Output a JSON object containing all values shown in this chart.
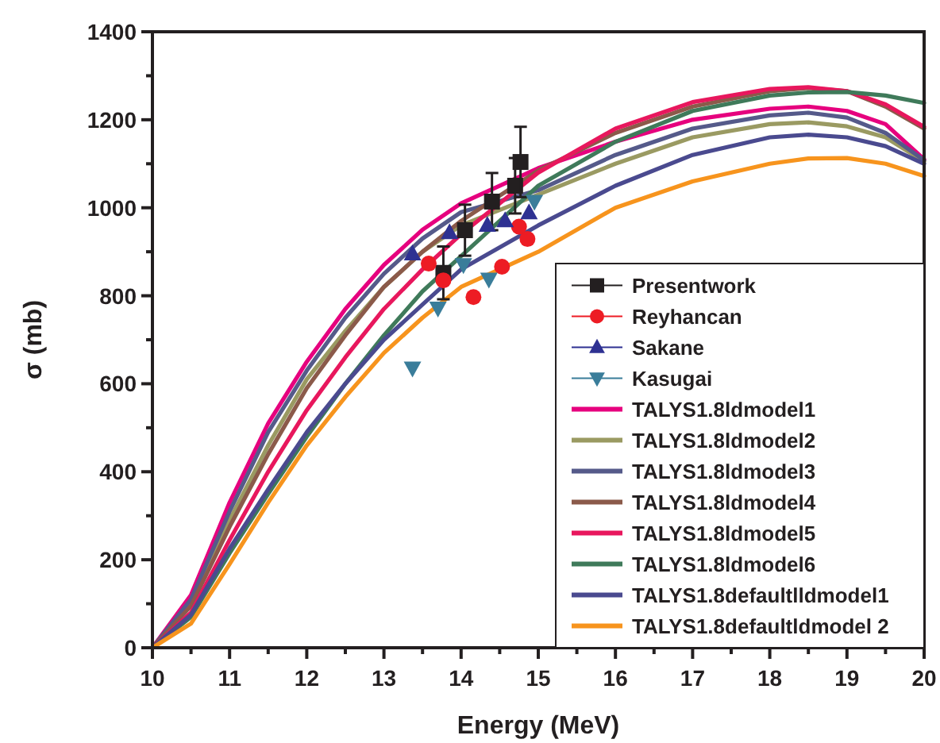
{
  "chart_data": {
    "type": "line",
    "xlabel": "Energy (MeV)",
    "ylabel": "σ (mb)",
    "xlim": [
      10,
      20
    ],
    "ylim": [
      0,
      1400
    ],
    "xticks": [
      10,
      {
        "value": 10.5,
        "label": null
      },
      11,
      {
        "value": 11.5,
        "label": null
      },
      12,
      {
        "value": 12.5,
        "label": null
      },
      13,
      {
        "value": 13.5,
        "label": null
      },
      14,
      {
        "value": 14.5,
        "label": null
      },
      15,
      {
        "value": 15.5,
        "label": null
      },
      16,
      {
        "value": 16.5,
        "label": null
      },
      17,
      {
        "value": 17.5,
        "label": null
      },
      18,
      {
        "value": 18.5,
        "label": null
      },
      19,
      {
        "value": 19.5,
        "label": null
      },
      20
    ],
    "yticks": [
      0,
      {
        "value": 100,
        "label": null
      },
      200,
      {
        "value": 300,
        "label": null
      },
      400,
      {
        "value": 500,
        "label": null
      },
      600,
      {
        "value": 700,
        "label": null
      },
      800,
      {
        "value": 900,
        "label": null
      },
      1000,
      {
        "value": 1100,
        "label": null
      },
      1200,
      {
        "value": 1300,
        "label": null
      },
      1400
    ],
    "grid": false,
    "legend": "bottom right",
    "series": [
      {
        "name": "Presentwork",
        "type": "scatter",
        "marker": "square",
        "color": "#231f20",
        "x": [
          13.77,
          14.05,
          14.4,
          14.7,
          14.77
        ],
        "values": [
          852,
          949,
          1014,
          1050,
          1104
        ],
        "errors": [
          60,
          58,
          65,
          63,
          80
        ]
      },
      {
        "name": "Reyhancan",
        "type": "scatter",
        "marker": "circle",
        "color": "#ed1c24",
        "x": [
          13.58,
          13.77,
          14.16,
          14.53,
          14.75,
          14.86
        ],
        "values": [
          873,
          835,
          797,
          866,
          957,
          929
        ]
      },
      {
        "name": "Sakane",
        "type": "scatter",
        "marker": "triangle",
        "color": "#2e3192",
        "x": [
          13.37,
          13.85,
          14.34,
          14.57,
          14.88
        ],
        "values": [
          895,
          943,
          960,
          970,
          988
        ]
      },
      {
        "name": "Kasugai",
        "type": "scatter",
        "marker": "triangle-down",
        "color": "#3a7d9a",
        "x": [
          13.37,
          13.7,
          14.03,
          14.36,
          14.95
        ],
        "values": [
          636,
          772,
          871,
          838,
          1015
        ]
      },
      {
        "name": "TALYS1.8ldmodel1",
        "color": "#e6007e",
        "x": [
          10,
          10.5,
          11,
          11.5,
          12,
          12.5,
          13,
          13.5,
          14,
          15,
          16,
          17,
          18,
          18.5,
          19,
          19.5,
          20
        ],
        "values": [
          0,
          120,
          330,
          510,
          650,
          770,
          870,
          950,
          1010,
          1090,
          1150,
          1200,
          1225,
          1230,
          1220,
          1190,
          1110
        ]
      },
      {
        "name": "TALYS1.8ldmodel2",
        "color": "#9a9a62",
        "x": [
          10,
          10.5,
          11,
          11.5,
          12,
          12.5,
          13,
          13.5,
          14,
          15,
          16,
          17,
          18,
          18.5,
          19,
          19.5,
          20
        ],
        "values": [
          0,
          100,
          290,
          460,
          610,
          720,
          820,
          900,
          960,
          1030,
          1100,
          1160,
          1190,
          1194,
          1185,
          1160,
          1105
        ]
      },
      {
        "name": "TALYS1.8ldmodel3",
        "color": "#555a8a",
        "x": [
          10,
          10.5,
          11,
          11.5,
          12,
          12.5,
          13,
          13.5,
          14,
          15,
          16,
          17,
          18,
          18.5,
          19,
          19.5,
          20
        ],
        "values": [
          0,
          110,
          310,
          490,
          630,
          750,
          850,
          930,
          990,
          1040,
          1120,
          1180,
          1210,
          1216,
          1205,
          1170,
          1108
        ]
      },
      {
        "name": "TALYS1.8ldmodel4",
        "color": "#8b5a4a",
        "x": [
          10,
          10.5,
          11,
          11.5,
          12,
          12.5,
          13,
          13.5,
          14,
          15,
          16,
          17,
          18,
          18.5,
          19,
          19.5,
          20
        ],
        "values": [
          0,
          95,
          275,
          440,
          590,
          710,
          820,
          900,
          970,
          1085,
          1170,
          1230,
          1265,
          1272,
          1265,
          1230,
          1180
        ]
      },
      {
        "name": "TALYS1.8ldmodel5",
        "color": "#e8175d",
        "x": [
          10,
          10.5,
          11,
          11.5,
          12,
          12.5,
          13,
          13.5,
          14,
          15,
          16,
          17,
          18,
          18.5,
          19,
          19.5,
          20
        ],
        "values": [
          0,
          80,
          245,
          400,
          540,
          660,
          770,
          860,
          940,
          1080,
          1180,
          1240,
          1270,
          1274,
          1265,
          1235,
          1184
        ]
      },
      {
        "name": "TALYS1.8ldmodel6",
        "color": "#3f7a5a",
        "x": [
          10,
          10.5,
          11,
          11.5,
          12,
          12.5,
          13,
          13.5,
          14,
          15,
          16,
          17,
          18,
          18.5,
          19,
          19.5,
          20
        ],
        "values": [
          0,
          70,
          215,
          350,
          480,
          600,
          710,
          810,
          890,
          1050,
          1150,
          1220,
          1255,
          1262,
          1263,
          1255,
          1238
        ]
      },
      {
        "name": "TALYS1.8defaultlldmodel1",
        "color": "#4a4a8f",
        "x": [
          10,
          10.5,
          11,
          11.5,
          12,
          12.5,
          13,
          13.5,
          14,
          15,
          16,
          17,
          18,
          18.5,
          19,
          19.5,
          20
        ],
        "values": [
          0,
          75,
          225,
          360,
          490,
          600,
          700,
          780,
          860,
          960,
          1050,
          1120,
          1160,
          1166,
          1160,
          1140,
          1100
        ]
      },
      {
        "name": "TALYS1.8defaultldmodel 2",
        "color": "#f7941d",
        "x": [
          10,
          10.5,
          11,
          11.5,
          12,
          12.5,
          13,
          13.5,
          14,
          15,
          16,
          17,
          18,
          18.5,
          19,
          19.5,
          20
        ],
        "values": [
          0,
          55,
          190,
          330,
          460,
          570,
          670,
          750,
          820,
          900,
          1000,
          1060,
          1100,
          1112,
          1113,
          1100,
          1072
        ]
      }
    ]
  }
}
